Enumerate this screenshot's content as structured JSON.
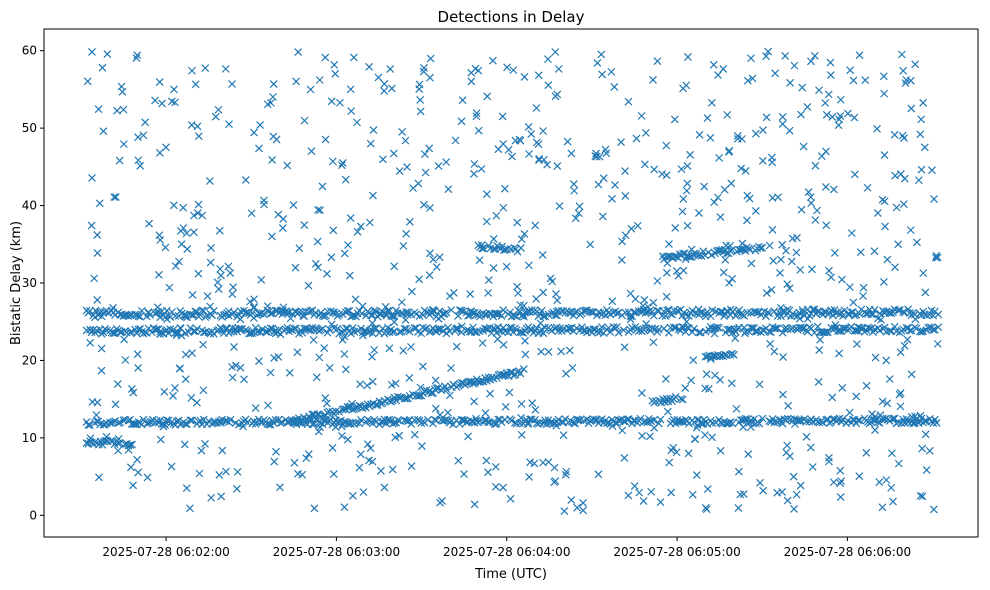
{
  "chart_data": {
    "type": "scatter",
    "title": "Detections in Delay",
    "xlabel": "Time (UTC)",
    "ylabel": "Bistatic Delay (km)",
    "marker": "x",
    "color": "#1f77b4",
    "xlim_seconds": [
      -43,
      286
    ],
    "ylim": [
      -2.8,
      62.8
    ],
    "xticks": [
      {
        "seconds": 0,
        "label": "2025-07-28 06:02:00"
      },
      {
        "seconds": 60,
        "label": "2025-07-28 06:03:00"
      },
      {
        "seconds": 120,
        "label": "2025-07-28 06:04:00"
      },
      {
        "seconds": 180,
        "label": "2025-07-28 06:05:00"
      },
      {
        "seconds": 240,
        "label": "2025-07-28 06:06:00"
      }
    ],
    "yticks": [
      0,
      10,
      20,
      30,
      40,
      50,
      60
    ],
    "x_reference": "seconds after 2025-07-28 06:02:00 UTC",
    "time_range_seconds": [
      -28,
      272
    ],
    "series": [
      {
        "name": "track 12 km",
        "x_start": -28,
        "x_end": 272,
        "y_start": 12.0,
        "y_end": 12.2,
        "jitter": 0.35
      },
      {
        "name": "rising track",
        "x_start": 45,
        "x_end": 126,
        "y_start": 12.2,
        "y_end": 18.6,
        "jitter": 0.3
      },
      {
        "name": "track 26 km",
        "x_start": -28,
        "x_end": 272,
        "y_start": 26.0,
        "y_end": 26.2,
        "jitter": 0.45
      },
      {
        "name": "track 24 km",
        "x_start": -28,
        "x_end": 272,
        "y_start": 23.8,
        "y_end": 24.0,
        "jitter": 0.4
      },
      {
        "name": "track 9.5 km",
        "x_start": -28,
        "x_end": -12,
        "y_start": 9.5,
        "y_end": 9.2,
        "jitter": 0.3
      },
      {
        "name": "track 34.5 km",
        "x_start": 110,
        "x_end": 125,
        "y_start": 34.8,
        "y_end": 34.3,
        "jitter": 0.3
      },
      {
        "name": "track 33.5 km",
        "x_start": 175,
        "x_end": 210,
        "y_start": 33.3,
        "y_end": 34.5,
        "jitter": 0.3
      },
      {
        "name": "track 14.8 km",
        "x_start": 170,
        "x_end": 182,
        "y_start": 14.5,
        "y_end": 15.2,
        "jitter": 0.3
      },
      {
        "name": "track 20.5 km",
        "x_start": 190,
        "x_end": 200,
        "y_start": 20.5,
        "y_end": 20.7,
        "jitter": 0.2
      },
      {
        "name": "clutter",
        "type": "random",
        "y_range": [
          0.5,
          60.0
        ]
      }
    ]
  }
}
